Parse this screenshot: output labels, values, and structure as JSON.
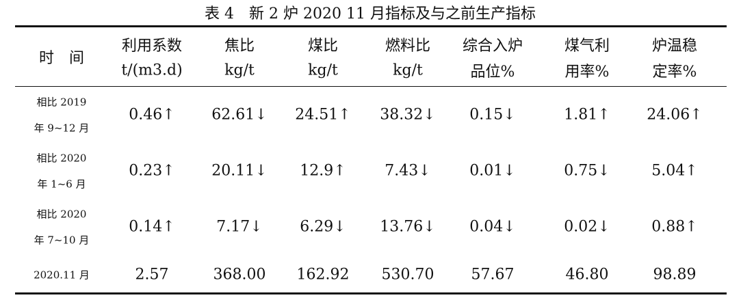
{
  "title": "表 4　新 2 炉 2020 11 月指标及与之前生产指标",
  "table": {
    "header": [
      [
        "时　间"
      ],
      [
        "利用系数",
        "t/(m3.d)"
      ],
      [
        "焦比",
        "kg/t"
      ],
      [
        "煤比",
        "kg/t"
      ],
      [
        "燃料比",
        "kg/t"
      ],
      [
        "综合入炉",
        "品位%"
      ],
      [
        "煤气利",
        "用率%"
      ],
      [
        "炉温稳",
        "定率%"
      ]
    ],
    "rows": [
      [
        [
          "相比 2019",
          "年 9~12 月"
        ],
        "0.46↑",
        "62.61↓",
        "24.51↑",
        "38.32↓",
        "0.15↓",
        "1.81↑",
        "24.06↑"
      ],
      [
        [
          "相比 2020",
          "年 1~6 月"
        ],
        "0.23↑",
        "20.11↓",
        "12.9↑",
        "7.43↓",
        "0.01↓",
        "0.75↓",
        "5.04↑"
      ],
      [
        [
          "相比 2020",
          "年 7~10 月"
        ],
        "0.14↑",
        "7.17↓",
        "6.29↓",
        "13.76↓",
        "0.04↓",
        "0.02↓",
        "0.88↑"
      ],
      [
        [
          "2020.11 月"
        ],
        "2.57",
        "368.00",
        "162.92",
        "530.70",
        "57.67",
        "46.80",
        "98.89"
      ]
    ]
  }
}
